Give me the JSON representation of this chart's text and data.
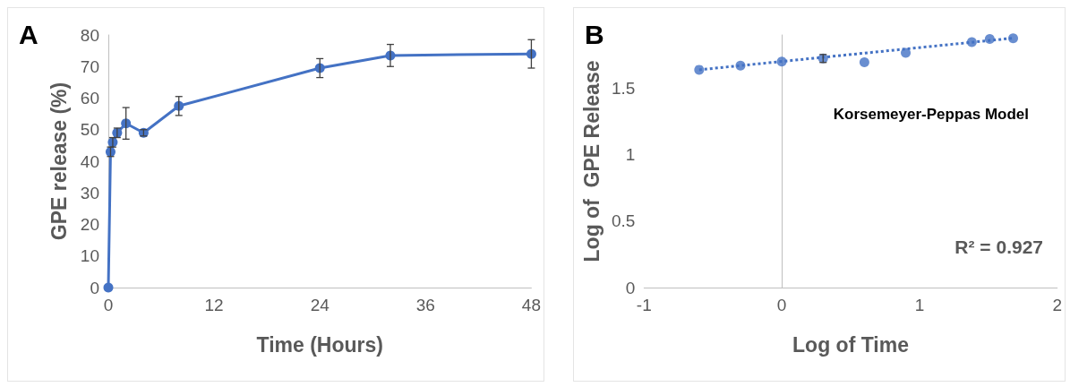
{
  "chart_data": [
    {
      "type": "line",
      "xlabel": "Time (Hours)",
      "ylabel": "GPE release (%)",
      "annotations": [
        "A"
      ],
      "x": [
        0,
        0.25,
        0.5,
        1,
        2,
        4,
        8,
        24,
        32,
        48
      ],
      "series": [
        {
          "color": "#4472c4",
          "values": [
            0,
            43,
            46,
            49,
            52,
            49,
            57.5,
            69.5,
            73.5,
            74
          ],
          "errors": [
            null,
            1.5,
            1.5,
            1.5,
            5,
            1,
            3,
            3,
            3.5,
            4.5
          ]
        }
      ],
      "xlim": [
        0,
        48
      ],
      "xticks": [
        0,
        12,
        24,
        36,
        48
      ],
      "ylim": [
        0,
        80
      ],
      "yticks": [
        0,
        10,
        20,
        30,
        40,
        50,
        60,
        70,
        80
      ],
      "marker": "circle",
      "line_style": "solid"
    },
    {
      "type": "scatter",
      "xlabel": "Log of Time",
      "ylabel": "Log of  GPE Release",
      "annotations": [
        "B",
        "Korsemeyer-Peppas Model",
        "R² = 0.927"
      ],
      "series": [
        {
          "color": "#4472c4",
          "x": [
            -0.6,
            -0.3,
            0,
            0.3,
            0.6,
            0.9,
            1.38,
            1.51,
            1.68
          ],
          "values": [
            1.638,
            1.669,
            1.699,
            1.723,
            1.694,
            1.766,
            1.846,
            1.87,
            1.875
          ],
          "errors": [
            null,
            null,
            null,
            0.03,
            null,
            null,
            null,
            null,
            null
          ]
        },
        {
          "type": "line",
          "color": "#4472c4",
          "x": [
            -0.6,
            1.68
          ],
          "values": [
            1.638,
            1.876
          ],
          "marker": "none",
          "line_style": "dotted"
        }
      ],
      "xlim": [
        -1,
        2
      ],
      "xticks": [
        -1,
        0,
        1,
        2
      ],
      "ylim": [
        0,
        1.9
      ],
      "yticks": [
        0,
        0.5,
        1,
        1.5
      ],
      "marker": "circle"
    }
  ]
}
